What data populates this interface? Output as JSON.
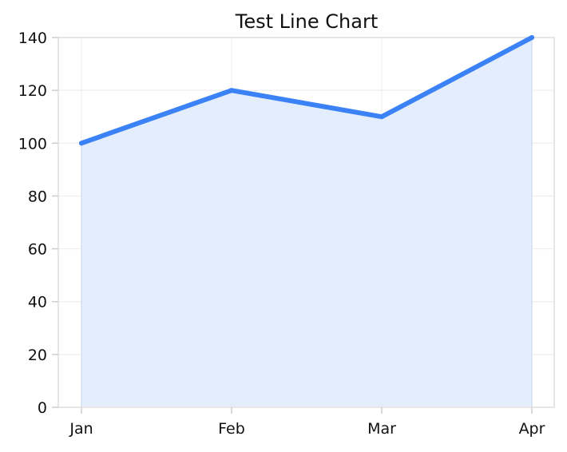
{
  "chart_data": {
    "type": "area",
    "title": "Test Line Chart",
    "xlabel": "",
    "ylabel": "",
    "categories": [
      "Jan",
      "Feb",
      "Mar",
      "Apr"
    ],
    "series": [
      {
        "values": [
          100,
          120,
          110,
          140
        ],
        "color": "#3b82f6",
        "fill_color": "#e4edfb"
      }
    ],
    "ylim": [
      0,
      140
    ],
    "yticks": [
      0,
      20,
      40,
      60,
      80,
      100,
      120,
      140
    ],
    "grid": true,
    "legend": "none"
  }
}
